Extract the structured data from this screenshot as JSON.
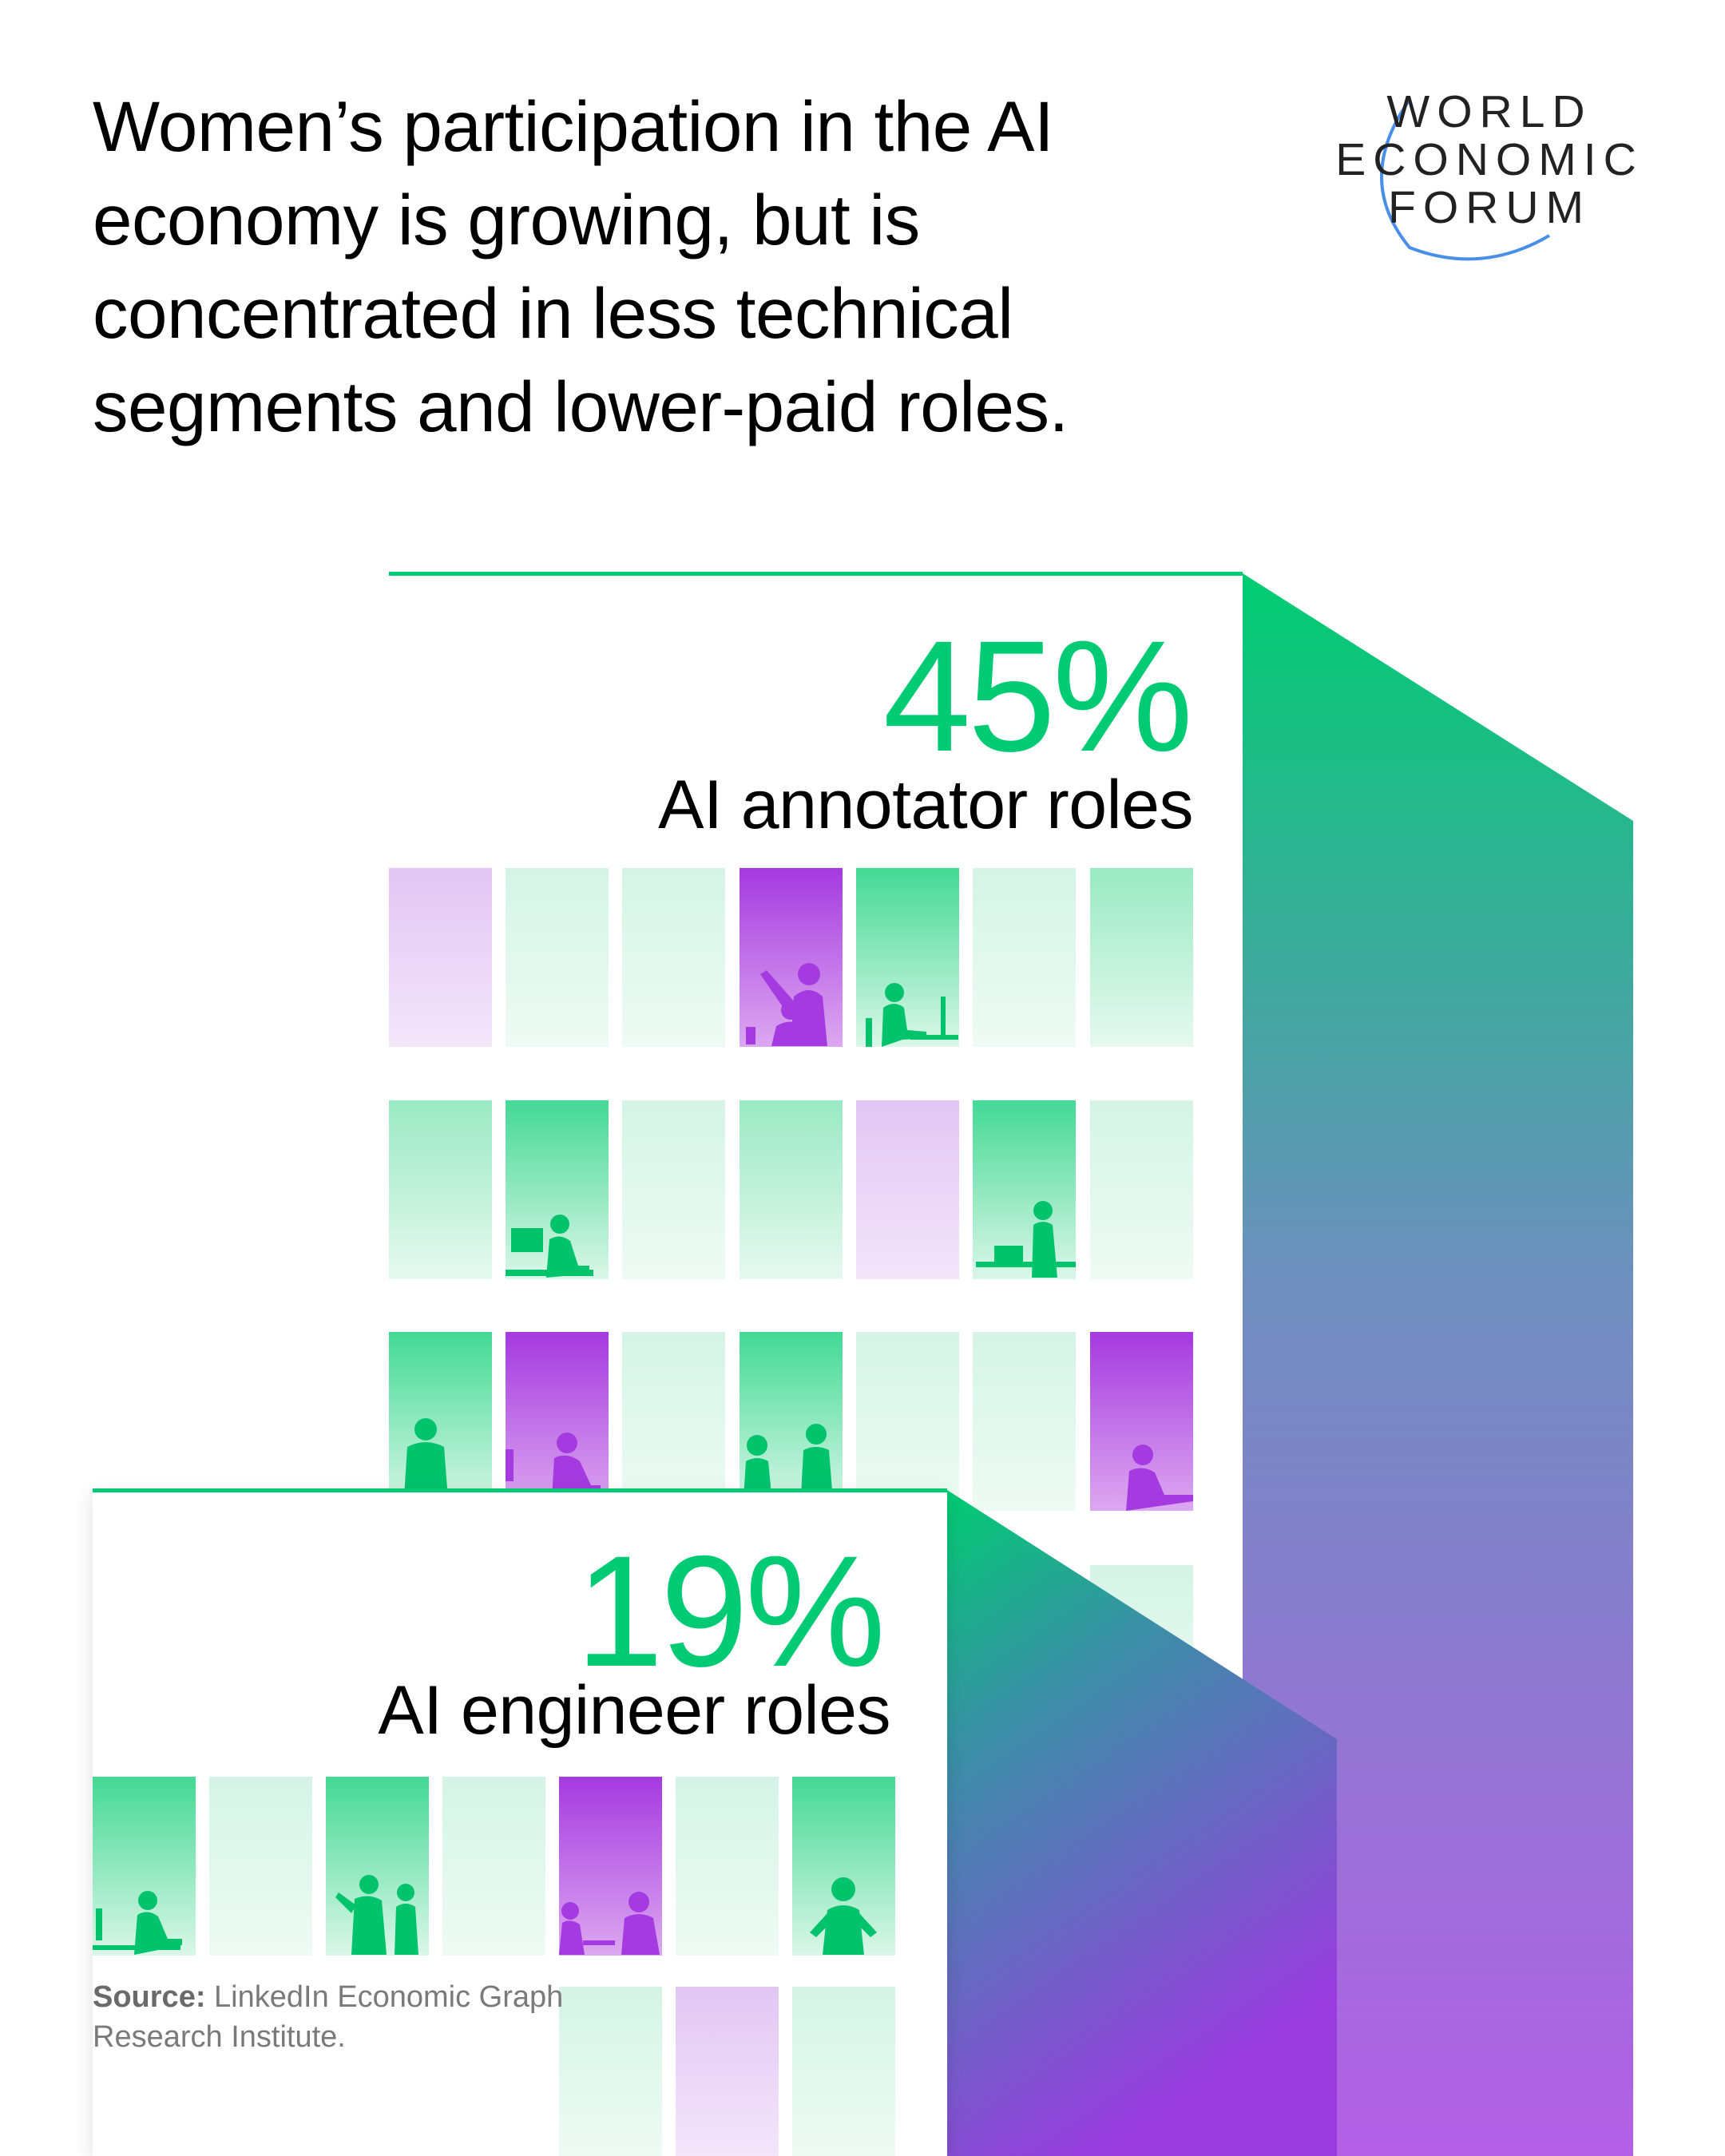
{
  "headline": "Women’s participation in the AI economy is growing, but is concentrated in less technical segments and lower-paid roles.",
  "logo": {
    "line1": "WORLD",
    "line2": "ECONOMIC",
    "line3": "FORUM"
  },
  "stats": [
    {
      "value": "45%",
      "label": "AI annotator roles"
    },
    {
      "value": "19%",
      "label": "AI engineer roles"
    }
  ],
  "source": {
    "label": "Source:",
    "text": "LinkedIn Economic Graph Research Institute."
  },
  "colors": {
    "green": "#00cb74",
    "purple": "#a737e0",
    "ink": "#000000",
    "muted": "#7a7a7a"
  }
}
